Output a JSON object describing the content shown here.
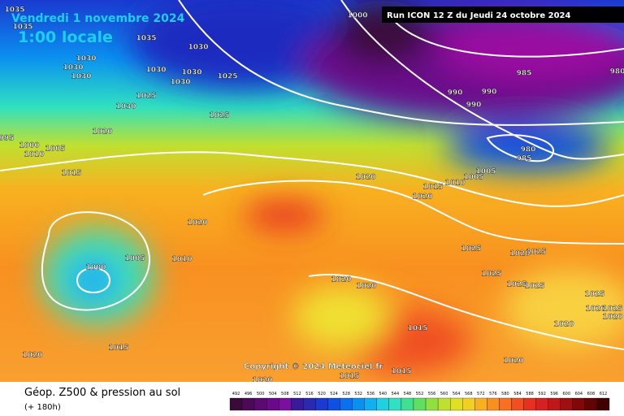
{
  "header": {
    "date": "Vendredi 1 novembre 2024",
    "time": "1:00 locale",
    "run": "Run ICON 12 Z du Jeudi 24 octobre 2024"
  },
  "copyright": "Copyright © 2024 Meteociel.fr",
  "footer": {
    "title": "Géop. Z500 & pression au sol",
    "lead": "(+ 180h)"
  },
  "isobar_labels": [
    1035,
    1035,
    1035,
    1030,
    1030,
    1030,
    1030,
    1030,
    1030,
    1030,
    1025,
    1025,
    1030,
    1025,
    1020,
    995,
    1000,
    1010,
    1005,
    1015,
    1000,
    980,
    985,
    990,
    990,
    990,
    980,
    985,
    1005,
    1005,
    1010,
    1015,
    1020,
    1020,
    1020,
    1000,
    1005,
    1010,
    1025,
    1025,
    1020,
    1025,
    1025,
    1025,
    1020,
    1020,
    1015,
    1015,
    1020,
    1020,
    1015,
    1015,
    1020,
    1020,
    1025,
    1020,
    1025,
    1020
  ],
  "legend": {
    "values": [
      492,
      496,
      500,
      504,
      508,
      512,
      516,
      520,
      524,
      528,
      532,
      536,
      540,
      544,
      548,
      552,
      556,
      560,
      564,
      568,
      572,
      576,
      580,
      584,
      588,
      592,
      596,
      600,
      604,
      608,
      612
    ],
    "colors": [
      "#3a0a3a",
      "#4a0a55",
      "#5a0a70",
      "#6a0a8a",
      "#7a10a0",
      "#3a1a9a",
      "#2a2ab0",
      "#1a3ad0",
      "#1050e0",
      "#0a70f0",
      "#0a90f0",
      "#10b0f0",
      "#20d0e0",
      "#30e0c0",
      "#40e090",
      "#60e060",
      "#90e040",
      "#c0e030",
      "#e0e020",
      "#f0d020",
      "#f8b020",
      "#f89020",
      "#f87020",
      "#f05020",
      "#e83020",
      "#d82020",
      "#c01818",
      "#a01010",
      "#800808",
      "#600404",
      "#400000"
    ]
  }
}
